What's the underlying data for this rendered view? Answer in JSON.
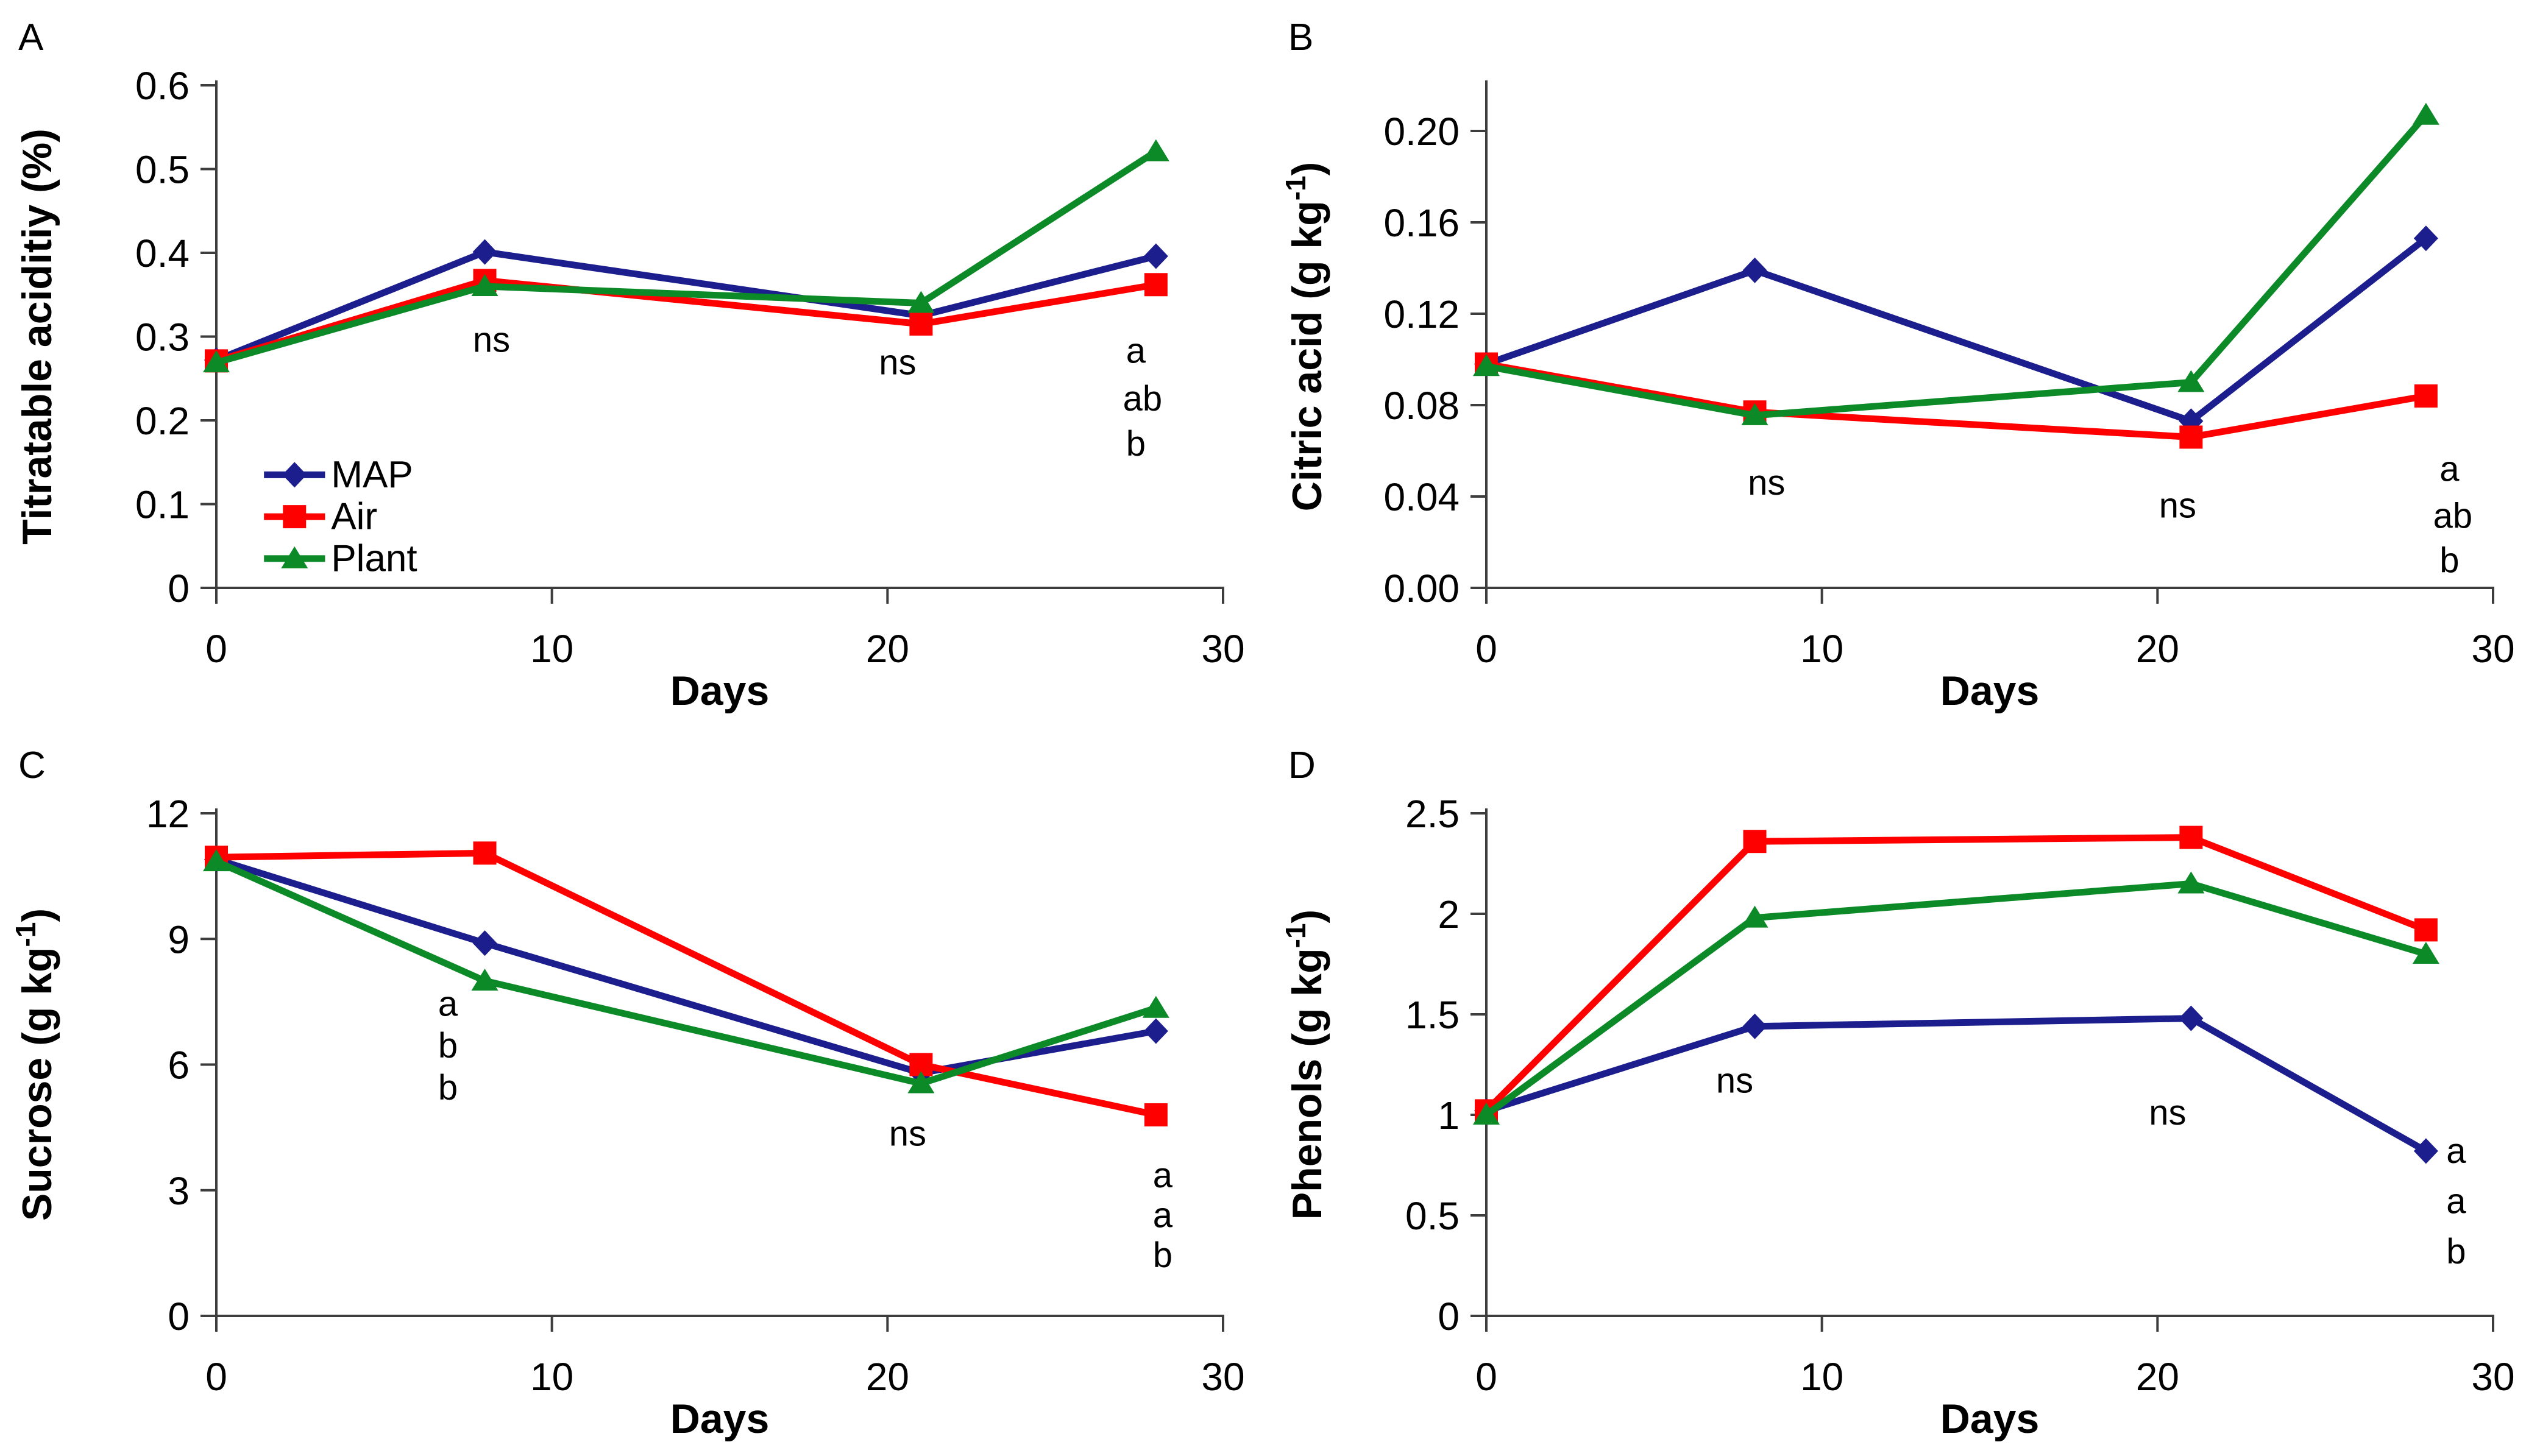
{
  "figure": {
    "background": "#ffffff"
  },
  "colors": {
    "map_navy": "#1C1E8E",
    "air_red": "#FF0000",
    "plant_green": "#0D8A28",
    "axis": "#3D3D3D",
    "text": "#000000"
  },
  "chart_data": [
    {
      "panel_label": "A",
      "type": "line",
      "title": "",
      "xlabel": "Days",
      "ylabel": "Titratable aciditiy (%)",
      "xlim": [
        0,
        30
      ],
      "ylim": [
        0,
        0.6
      ],
      "grid": false,
      "x": [
        0,
        8,
        21,
        28
      ],
      "xticks": [
        {
          "v": 0,
          "label": "0"
        },
        {
          "v": 10,
          "label": "10"
        },
        {
          "v": 20,
          "label": "20"
        },
        {
          "v": 30,
          "label": "30"
        }
      ],
      "yticks": [
        {
          "v": 0,
          "label": "0"
        },
        {
          "v": 0.1,
          "label": "0.1"
        },
        {
          "v": 0.2,
          "label": "0.2"
        },
        {
          "v": 0.3,
          "label": "0.3"
        },
        {
          "v": 0.4,
          "label": "0.4"
        },
        {
          "v": 0.5,
          "label": "0.5"
        },
        {
          "v": 0.6,
          "label": "0.6"
        }
      ],
      "series": [
        {
          "name": "MAP",
          "marker": "diamond",
          "color": "#1C1E8E",
          "values": [
            0.272,
            0.401,
            0.325,
            0.396
          ]
        },
        {
          "name": "Air",
          "marker": "square",
          "color": "#FF0000",
          "values": [
            0.271,
            0.367,
            0.315,
            0.362
          ]
        },
        {
          "name": "Plant",
          "marker": "triangle",
          "color": "#0D8A28",
          "values": [
            0.269,
            0.36,
            0.34,
            0.521
          ]
        }
      ],
      "annotations": [
        {
          "text": "ns",
          "x": 8.2,
          "y": 0.296
        },
        {
          "text": "ns",
          "x": 20.3,
          "y": 0.269
        },
        {
          "text": "a",
          "x": 27.4,
          "y": 0.283
        },
        {
          "text": "ab",
          "x": 27.6,
          "y": 0.226
        },
        {
          "text": "b",
          "x": 27.4,
          "y": 0.172
        }
      ],
      "legend": {
        "position": "lower-left-inside",
        "x_line_start": 1.42,
        "x_line_end": 3.24,
        "x_text": 3.42,
        "rows": [
          {
            "series": "MAP",
            "y": 0.135
          },
          {
            "series": "Air",
            "y": 0.085
          },
          {
            "series": "Plant",
            "y": 0.035
          }
        ]
      }
    },
    {
      "panel_label": "B",
      "type": "line",
      "title": "",
      "xlabel": "Days",
      "ylabel": "Citric acid (g kg⁻¹)",
      "xlim": [
        0,
        30
      ],
      "ylim": [
        0,
        0.22
      ],
      "grid": false,
      "x": [
        0,
        8,
        21,
        28
      ],
      "xticks": [
        {
          "v": 0,
          "label": "0"
        },
        {
          "v": 10,
          "label": "10"
        },
        {
          "v": 20,
          "label": "20"
        },
        {
          "v": 30,
          "label": "30"
        }
      ],
      "yticks": [
        {
          "v": 0,
          "label": "0.00"
        },
        {
          "v": 0.04,
          "label": "0.04"
        },
        {
          "v": 0.08,
          "label": "0.08"
        },
        {
          "v": 0.12,
          "label": "0.12"
        },
        {
          "v": 0.16,
          "label": "0.16"
        },
        {
          "v": 0.2,
          "label": "0.20"
        }
      ],
      "series": [
        {
          "name": "MAP",
          "marker": "diamond",
          "color": "#1C1E8E",
          "values": [
            0.098,
            0.139,
            0.073,
            0.153
          ]
        },
        {
          "name": "Air",
          "marker": "square",
          "color": "#FF0000",
          "values": [
            0.098,
            0.077,
            0.066,
            0.084
          ]
        },
        {
          "name": "Plant",
          "marker": "triangle",
          "color": "#0D8A28",
          "values": [
            0.097,
            0.0755,
            0.09,
            0.207
          ]
        }
      ],
      "annotations": [
        {
          "text": "ns",
          "x": 8.35,
          "y": 0.046
        },
        {
          "text": "ns",
          "x": 20.6,
          "y": 0.036
        },
        {
          "text": "a",
          "x": 28.7,
          "y": 0.052
        },
        {
          "text": "ab",
          "x": 28.8,
          "y": 0.0315
        },
        {
          "text": "b",
          "x": 28.7,
          "y": 0.012
        }
      ],
      "legend": null
    },
    {
      "panel_label": "C",
      "type": "line",
      "title": "",
      "xlabel": "Days",
      "ylabel": "Sucrose (g kg⁻¹)",
      "xlim": [
        0,
        30
      ],
      "ylim": [
        0,
        12
      ],
      "grid": false,
      "x": [
        0,
        8,
        21,
        28
      ],
      "xticks": [
        {
          "v": 0,
          "label": "0"
        },
        {
          "v": 10,
          "label": "10"
        },
        {
          "v": 20,
          "label": "20"
        },
        {
          "v": 30,
          "label": "30"
        }
      ],
      "yticks": [
        {
          "v": 0,
          "label": "0"
        },
        {
          "v": 3,
          "label": "3"
        },
        {
          "v": 6,
          "label": "6"
        },
        {
          "v": 9,
          "label": "9"
        },
        {
          "v": 12,
          "label": "12"
        }
      ],
      "series": [
        {
          "name": "MAP",
          "marker": "diamond",
          "color": "#1C1E8E",
          "values": [
            10.9,
            8.9,
            5.8,
            6.8
          ]
        },
        {
          "name": "Air",
          "marker": "square",
          "color": "#FF0000",
          "values": [
            10.95,
            11.05,
            6.0,
            4.8
          ]
        },
        {
          "name": "Plant",
          "marker": "triangle",
          "color": "#0D8A28",
          "values": [
            10.85,
            8.0,
            5.55,
            7.35
          ]
        }
      ],
      "annotations": [
        {
          "text": "a",
          "x": 6.9,
          "y": 7.45
        },
        {
          "text": "b",
          "x": 6.9,
          "y": 6.45
        },
        {
          "text": "b",
          "x": 6.9,
          "y": 5.45
        },
        {
          "text": "ns",
          "x": 20.6,
          "y": 4.35
        },
        {
          "text": "a",
          "x": 28.2,
          "y": 3.35
        },
        {
          "text": "a",
          "x": 28.2,
          "y": 2.4
        },
        {
          "text": "b",
          "x": 28.2,
          "y": 1.45
        }
      ],
      "legend": null
    },
    {
      "panel_label": "D",
      "type": "line",
      "title": "",
      "xlabel": "Days",
      "ylabel": "Phenols (g kg⁻¹)",
      "xlim": [
        0,
        30
      ],
      "ylim": [
        0,
        2.5
      ],
      "grid": false,
      "x": [
        0,
        8,
        21,
        28
      ],
      "xticks": [
        {
          "v": 0,
          "label": "0"
        },
        {
          "v": 10,
          "label": "10"
        },
        {
          "v": 20,
          "label": "20"
        },
        {
          "v": 30,
          "label": "30"
        }
      ],
      "yticks": [
        {
          "v": 0,
          "label": "0"
        },
        {
          "v": 0.5,
          "label": "0.5"
        },
        {
          "v": 1,
          "label": "1"
        },
        {
          "v": 1.5,
          "label": "1.5"
        },
        {
          "v": 2,
          "label": "2"
        },
        {
          "v": 2.5,
          "label": "2.5"
        }
      ],
      "series": [
        {
          "name": "MAP",
          "marker": "diamond",
          "color": "#1C1E8E",
          "values": [
            1.02,
            1.44,
            1.48,
            0.82
          ]
        },
        {
          "name": "Air",
          "marker": "square",
          "color": "#FF0000",
          "values": [
            1.02,
            2.36,
            2.38,
            1.92
          ]
        },
        {
          "name": "Plant",
          "marker": "triangle",
          "color": "#0D8A28",
          "values": [
            1.0,
            1.98,
            2.15,
            1.8
          ]
        }
      ],
      "annotations": [
        {
          "text": "ns",
          "x": 7.4,
          "y": 1.17
        },
        {
          "text": "ns",
          "x": 20.3,
          "y": 1.01
        },
        {
          "text": "a",
          "x": 28.9,
          "y": 0.82
        },
        {
          "text": "a",
          "x": 28.9,
          "y": 0.57
        },
        {
          "text": "b",
          "x": 28.9,
          "y": 0.32
        }
      ],
      "legend": null
    }
  ]
}
